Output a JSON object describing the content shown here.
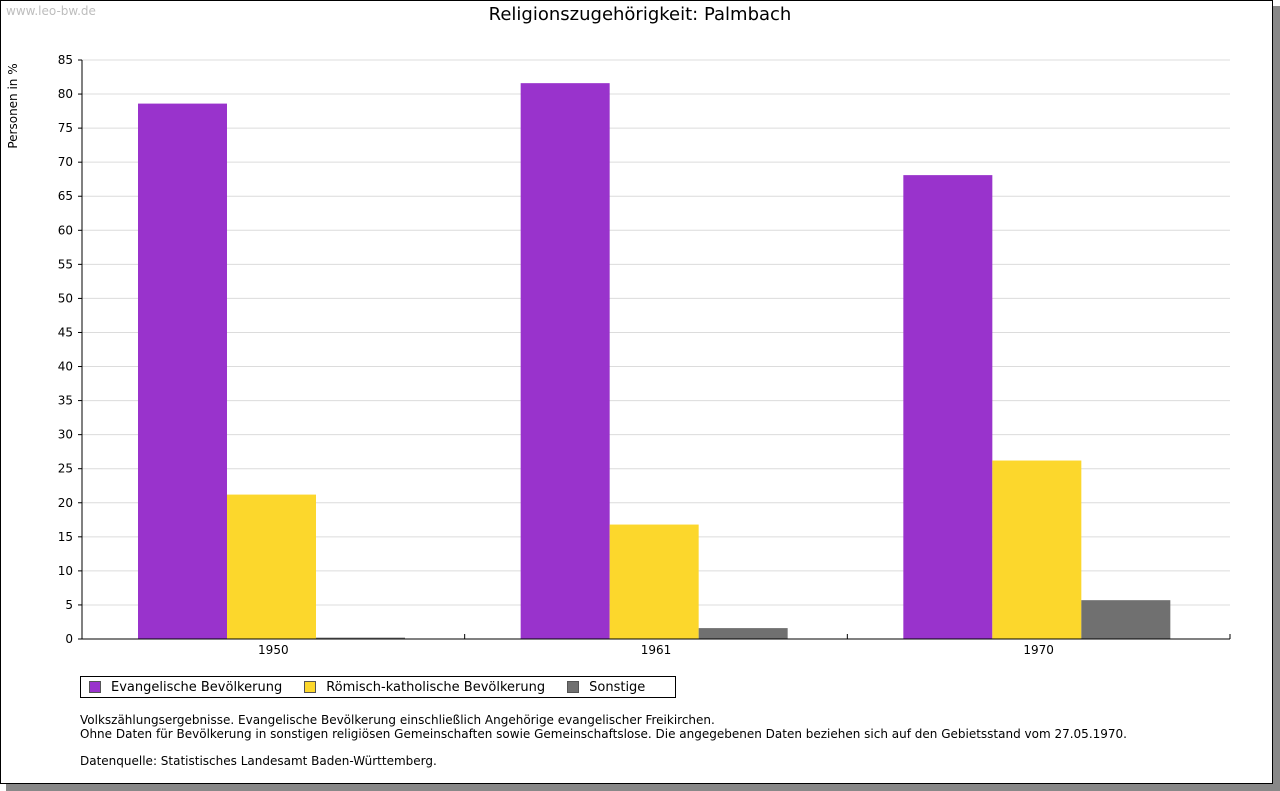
{
  "watermark": "www.leo-bw.de",
  "chart_data": {
    "type": "bar",
    "title": "Religionszugehörigkeit: Palmbach",
    "xlabel": "",
    "ylabel": "Personen in %",
    "ylim": [
      0,
      85
    ],
    "yticks": [
      0,
      5,
      10,
      15,
      20,
      25,
      30,
      35,
      40,
      45,
      50,
      55,
      60,
      65,
      70,
      75,
      80,
      85
    ],
    "grid": true,
    "categories": [
      "1950",
      "1961",
      "1970"
    ],
    "series": [
      {
        "name": "Evangelische Bevölkerung",
        "color": "#9933cc",
        "values": [
          78.6,
          81.6,
          68.1
        ]
      },
      {
        "name": "Römisch-katholische Bevölkerung",
        "color": "#fcd72c",
        "values": [
          21.2,
          16.8,
          26.2
        ]
      },
      {
        "name": "Sonstige",
        "color": "#707070",
        "values": [
          0.2,
          1.6,
          5.7
        ]
      }
    ],
    "legend_position": "bottom-left"
  },
  "notes": {
    "line1": "Volkszählungsergebnisse. Evangelische Bevölkerung einschließlich Angehörige evangelischer Freikirchen.",
    "line2": "Ohne Daten für Bevölkerung in sonstigen religiösen Gemeinschaften sowie Gemeinschaftslose. Die angegebenen Daten beziehen sich auf den Gebietsstand vom 27.05.1970.",
    "source": "Datenquelle: Statistisches Landesamt Baden-Württemberg."
  }
}
